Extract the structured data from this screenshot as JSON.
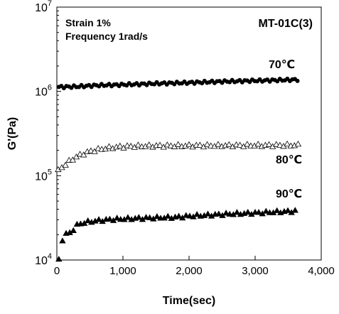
{
  "chart_data": {
    "type": "scatter",
    "title": "",
    "xlabel": "Time(sec)",
    "ylabel": "G'(Pa)",
    "xlim": [
      0,
      4000
    ],
    "ylim": [
      10000,
      10000000
    ],
    "yscale": "log",
    "grid": false,
    "x_ticks": [
      0,
      1000,
      2000,
      3000,
      4000
    ],
    "x_tick_labels": [
      "0",
      "1,000",
      "2,000",
      "3,000",
      "4,000"
    ],
    "y_ticks": [
      {
        "base": "10",
        "exp": "4",
        "value": 10000
      },
      {
        "base": "10",
        "exp": "5",
        "value": 100000
      },
      {
        "base": "10",
        "exp": "6",
        "value": 1000000
      },
      {
        "base": "10",
        "exp": "7",
        "value": 10000000
      }
    ],
    "annotations": {
      "strain": "Strain 1%",
      "frequency": "Frequency 1rad/s",
      "sample": "MT-01C(3)"
    },
    "series": [
      {
        "name": "70℃",
        "marker": "filled-circle",
        "color": "#000000",
        "x": [
          30,
          300,
          600,
          1000,
          1500,
          2000,
          2500,
          3000,
          3500,
          3650
        ],
        "y": [
          1130000,
          1140000,
          1180000,
          1200000,
          1240000,
          1270000,
          1310000,
          1340000,
          1370000,
          1380000
        ]
      },
      {
        "name": "80℃",
        "marker": "open-triangle",
        "color": "#000000",
        "x": [
          20,
          100,
          200,
          300,
          400,
          500,
          650,
          800,
          1000,
          1200,
          1500,
          2000,
          2500,
          3000,
          3500,
          3650
        ],
        "y": [
          116000,
          132000,
          152000,
          170000,
          184000,
          196000,
          208000,
          217000,
          223000,
          226000,
          228000,
          229000,
          230000,
          231000,
          232000,
          232000
        ]
      },
      {
        "name": "90℃",
        "marker": "filled-triangle",
        "color": "#000000",
        "x": [
          30,
          100,
          200,
          300,
          400,
          600,
          800,
          1000,
          1200,
          1500,
          1800,
          2000,
          2300,
          2600,
          3000,
          3300,
          3650
        ],
        "y": [
          10000,
          20500,
          21000,
          26000,
          28000,
          29500,
          30500,
          31000,
          31500,
          32000,
          32500,
          33500,
          34500,
          35500,
          36500,
          37500,
          38500
        ]
      }
    ]
  }
}
